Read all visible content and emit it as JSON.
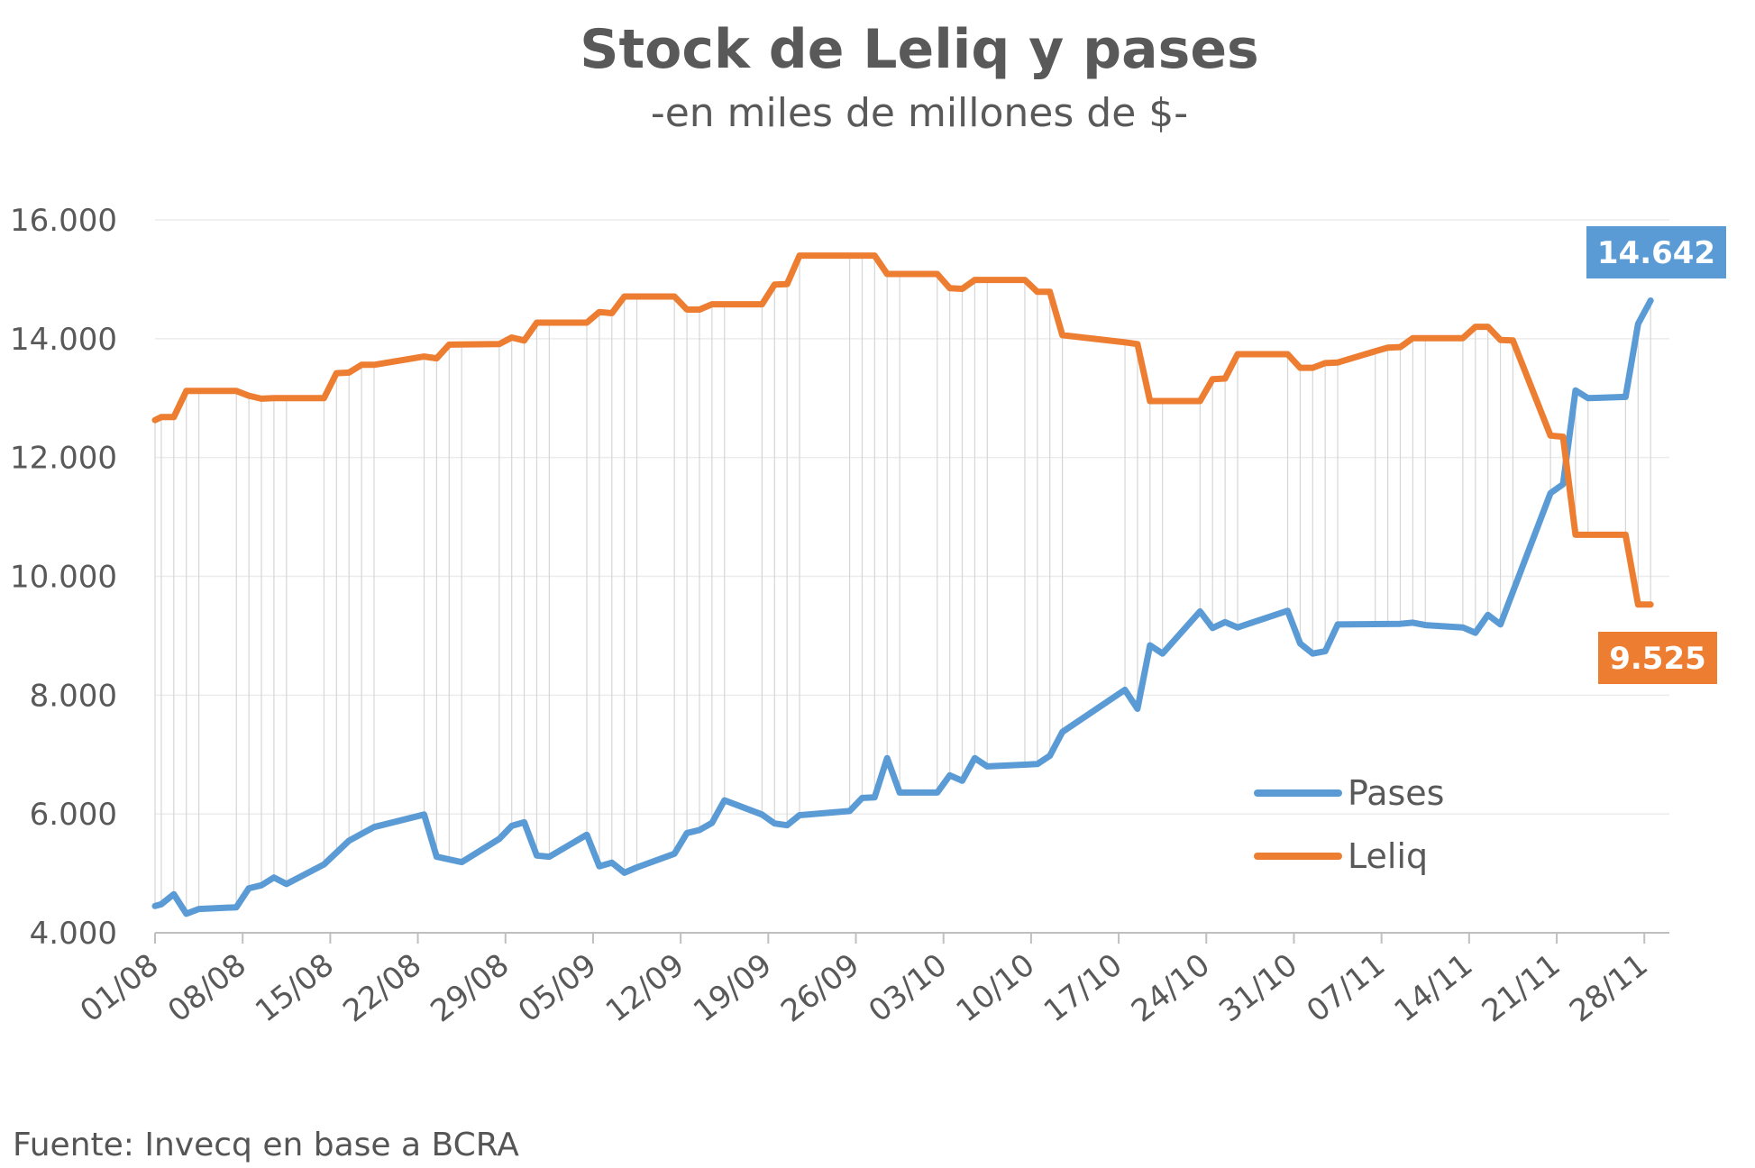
{
  "chart_data": {
    "type": "line",
    "title": "Stock de Leliq y pases",
    "subtitle": "-en miles de millones de $-",
    "source": "Fuente: Invecq en base a BCRA",
    "ylim": [
      4000,
      16000
    ],
    "yticks": [
      {
        "value": 16000,
        "label": "16.000"
      },
      {
        "value": 14000,
        "label": "14.000"
      },
      {
        "value": 12000,
        "label": "12.000"
      },
      {
        "value": 10000,
        "label": "10.000"
      },
      {
        "value": 8000,
        "label": "8.000"
      },
      {
        "value": 6000,
        "label": "6.000"
      },
      {
        "value": 4000,
        "label": "4.000"
      }
    ],
    "xlim": [
      0,
      121
    ],
    "xticks": [
      {
        "day": 0,
        "label": "01/08"
      },
      {
        "day": 7,
        "label": "08/08"
      },
      {
        "day": 14,
        "label": "15/08"
      },
      {
        "day": 21,
        "label": "22/08"
      },
      {
        "day": 28,
        "label": "29/08"
      },
      {
        "day": 35,
        "label": "05/09"
      },
      {
        "day": 42,
        "label": "12/09"
      },
      {
        "day": 49,
        "label": "19/09"
      },
      {
        "day": 56,
        "label": "26/09"
      },
      {
        "day": 63,
        "label": "03/10"
      },
      {
        "day": 70,
        "label": "10/10"
      },
      {
        "day": 77,
        "label": "17/10"
      },
      {
        "day": 84,
        "label": "24/10"
      },
      {
        "day": 91,
        "label": "31/10"
      },
      {
        "day": 98,
        "label": "07/11"
      },
      {
        "day": 105,
        "label": "14/11"
      },
      {
        "day": 112,
        "label": "21/11"
      },
      {
        "day": 119,
        "label": "28/11"
      }
    ],
    "grid": true,
    "legend_position": "bottom-right",
    "series": [
      {
        "name": "Pases",
        "color": "#5B9BD5",
        "end_label": "14.642",
        "points": [
          [
            0,
            4450
          ],
          [
            0.5,
            4480
          ],
          [
            1.5,
            4650
          ],
          [
            2.5,
            4320
          ],
          [
            3.5,
            4400
          ],
          [
            6.5,
            4430
          ],
          [
            7.5,
            4750
          ],
          [
            8.5,
            4800
          ],
          [
            9.5,
            4930
          ],
          [
            10.5,
            4820
          ],
          [
            13.5,
            5150
          ],
          [
            15.5,
            5550
          ],
          [
            17.5,
            5780
          ],
          [
            21.5,
            5990
          ],
          [
            22.5,
            5280
          ],
          [
            24.5,
            5190
          ],
          [
            27.5,
            5580
          ],
          [
            28.5,
            5800
          ],
          [
            29.5,
            5860
          ],
          [
            30.5,
            5300
          ],
          [
            31.5,
            5280
          ],
          [
            34.5,
            5650
          ],
          [
            35.5,
            5120
          ],
          [
            36.5,
            5180
          ],
          [
            37.5,
            5010
          ],
          [
            38.5,
            5100
          ],
          [
            41.5,
            5330
          ],
          [
            42.5,
            5680
          ],
          [
            43.5,
            5730
          ],
          [
            44.5,
            5850
          ],
          [
            45.5,
            6230
          ],
          [
            48.5,
            5990
          ],
          [
            49.5,
            5840
          ],
          [
            50.5,
            5810
          ],
          [
            51.5,
            5980
          ],
          [
            55.5,
            6050
          ],
          [
            56.5,
            6270
          ],
          [
            57.5,
            6280
          ],
          [
            58.5,
            6940
          ],
          [
            59.5,
            6360
          ],
          [
            62.5,
            6360
          ],
          [
            63.5,
            6650
          ],
          [
            64.5,
            6560
          ],
          [
            65.5,
            6940
          ],
          [
            66.5,
            6800
          ],
          [
            70.5,
            6840
          ],
          [
            71.5,
            6980
          ],
          [
            72.5,
            7380
          ],
          [
            77.5,
            8090
          ],
          [
            78.5,
            7770
          ],
          [
            79.5,
            8840
          ],
          [
            80.5,
            8700
          ],
          [
            83.5,
            9410
          ],
          [
            84.5,
            9130
          ],
          [
            85.5,
            9230
          ],
          [
            86.5,
            9140
          ],
          [
            90.5,
            9420
          ],
          [
            91.5,
            8870
          ],
          [
            92.5,
            8700
          ],
          [
            93.5,
            8740
          ],
          [
            94.5,
            9190
          ],
          [
            99.5,
            9200
          ],
          [
            100.5,
            9220
          ],
          [
            101.5,
            9180
          ],
          [
            104.5,
            9140
          ],
          [
            105.5,
            9050
          ],
          [
            106.5,
            9350
          ],
          [
            107.5,
            9190
          ],
          [
            111.5,
            11400
          ],
          [
            112.5,
            11550
          ],
          [
            113.5,
            13130
          ],
          [
            114.5,
            13000
          ],
          [
            117.5,
            13020
          ],
          [
            118.5,
            14250
          ],
          [
            119.5,
            14642
          ]
        ]
      },
      {
        "name": "Leliq",
        "color": "#ED7D31",
        "end_label": "9.525",
        "points": [
          [
            0,
            12630
          ],
          [
            0.5,
            12680
          ],
          [
            1.5,
            12680
          ],
          [
            2.5,
            13120
          ],
          [
            6.5,
            13120
          ],
          [
            7.5,
            13040
          ],
          [
            8.5,
            12990
          ],
          [
            9.5,
            13000
          ],
          [
            13.5,
            13000
          ],
          [
            14.5,
            13420
          ],
          [
            15.5,
            13430
          ],
          [
            16.5,
            13560
          ],
          [
            17.5,
            13560
          ],
          [
            21.5,
            13700
          ],
          [
            22.5,
            13670
          ],
          [
            23.5,
            13900
          ],
          [
            27.5,
            13910
          ],
          [
            28.5,
            14020
          ],
          [
            29.5,
            13970
          ],
          [
            30.5,
            14270
          ],
          [
            34.5,
            14270
          ],
          [
            35.5,
            14450
          ],
          [
            36.5,
            14430
          ],
          [
            37.5,
            14710
          ],
          [
            41.5,
            14710
          ],
          [
            42.5,
            14490
          ],
          [
            43.5,
            14490
          ],
          [
            44.5,
            14580
          ],
          [
            48.5,
            14580
          ],
          [
            49.5,
            14910
          ],
          [
            50.5,
            14920
          ],
          [
            51.5,
            15400
          ],
          [
            57.5,
            15400
          ],
          [
            58.5,
            15090
          ],
          [
            62.5,
            15090
          ],
          [
            63.5,
            14850
          ],
          [
            64.5,
            14840
          ],
          [
            65.5,
            14990
          ],
          [
            69.5,
            14990
          ],
          [
            70.5,
            14790
          ],
          [
            71.5,
            14790
          ],
          [
            72.5,
            14060
          ],
          [
            77.5,
            13940
          ],
          [
            78.5,
            13910
          ],
          [
            79.5,
            12950
          ],
          [
            83.5,
            12950
          ],
          [
            84.5,
            13320
          ],
          [
            85.5,
            13330
          ],
          [
            86.5,
            13740
          ],
          [
            90.5,
            13740
          ],
          [
            91.5,
            13510
          ],
          [
            92.5,
            13510
          ],
          [
            93.5,
            13590
          ],
          [
            94.5,
            13600
          ],
          [
            97.5,
            13790
          ],
          [
            98.5,
            13850
          ],
          [
            99.5,
            13860
          ],
          [
            100.5,
            14010
          ],
          [
            104.5,
            14010
          ],
          [
            105.5,
            14200
          ],
          [
            106.5,
            14200
          ],
          [
            107.5,
            13980
          ],
          [
            108.5,
            13970
          ],
          [
            111.5,
            12370
          ],
          [
            112.5,
            12350
          ],
          [
            113.5,
            10700
          ],
          [
            117.5,
            10700
          ],
          [
            118.5,
            9525
          ],
          [
            119.5,
            9525
          ]
        ]
      }
    ]
  }
}
